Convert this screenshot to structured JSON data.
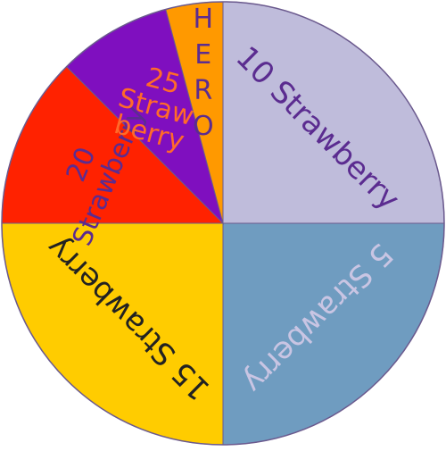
{
  "wheel": {
    "segments": [
      {
        "label_lines": [
          "10 Strawberry"
        ],
        "color": "#bfbcdb",
        "text_color": "#5b2c90",
        "share": 0.25
      },
      {
        "label_lines": [
          "5 Strawberry"
        ],
        "color": "#6f9cc0",
        "text_color": "#c9c5e3",
        "share": 0.25
      },
      {
        "label_lines": [
          "15 Strawberry"
        ],
        "color": "#ffcc00",
        "text_color": "#222222",
        "share": 0.25
      },
      {
        "label_lines": [
          "20",
          "Strawberry"
        ],
        "color": "#ff2200",
        "text_color": "#5b2c90",
        "share": 0.125
      },
      {
        "label_lines": [
          "25",
          "Straw",
          "berry"
        ],
        "color": "#7f0fbf",
        "text_color": "#ff6a2a",
        "share": 0.0833
      },
      {
        "label_lines": [
          "H",
          "E",
          "R",
          "O"
        ],
        "color": "#ff9900",
        "text_color": "#5b2c90",
        "share": 0.0417
      }
    ],
    "outline_color": "#6b5a8e"
  }
}
